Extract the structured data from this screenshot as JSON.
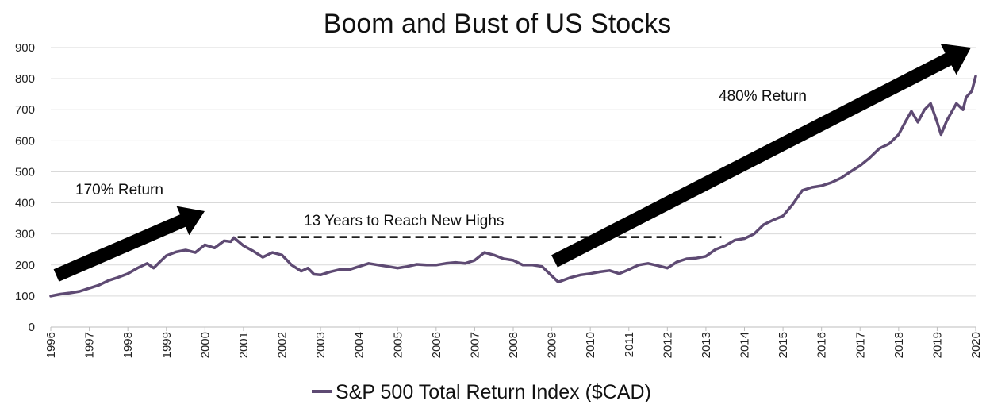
{
  "chart_data": {
    "type": "line",
    "title": "Boom and Bust of US Stocks",
    "xlabel": "",
    "ylabel": "",
    "xlim": [
      1996,
      2020
    ],
    "ylim": [
      0,
      900
    ],
    "yticks": [
      0,
      100,
      200,
      300,
      400,
      500,
      600,
      700,
      800,
      900
    ],
    "xticks": [
      "1996",
      "1997",
      "1998",
      "1999",
      "2000",
      "2001",
      "2002",
      "2003",
      "2004",
      "2005",
      "2006",
      "2007",
      "2008",
      "2009",
      "2010",
      "2011",
      "2012",
      "2013",
      "2014",
      "2015",
      "2016",
      "2017",
      "2018",
      "2019",
      "2020"
    ],
    "grid": "horizontal",
    "legend_position": "bottom",
    "series": [
      {
        "name": "S&P 500 Total Return Index ($CAD)",
        "color": "#5e4a73",
        "x": [
          1996.0,
          1996.25,
          1996.5,
          1996.75,
          1997.0,
          1997.25,
          1997.5,
          1997.75,
          1998.0,
          1998.25,
          1998.5,
          1998.67,
          1998.83,
          1999.0,
          1999.25,
          1999.5,
          1999.75,
          2000.0,
          2000.25,
          2000.5,
          2000.67,
          2000.75,
          2001.0,
          2001.25,
          2001.5,
          2001.75,
          2002.0,
          2002.25,
          2002.5,
          2002.67,
          2002.83,
          2003.0,
          2003.25,
          2003.5,
          2003.75,
          2004.0,
          2004.25,
          2004.5,
          2004.75,
          2005.0,
          2005.25,
          2005.5,
          2005.75,
          2006.0,
          2006.25,
          2006.5,
          2006.75,
          2007.0,
          2007.25,
          2007.5,
          2007.75,
          2008.0,
          2008.25,
          2008.5,
          2008.75,
          2009.0,
          2009.17,
          2009.5,
          2009.75,
          2010.0,
          2010.25,
          2010.5,
          2010.75,
          2011.0,
          2011.25,
          2011.5,
          2011.75,
          2012.0,
          2012.25,
          2012.5,
          2012.75,
          2013.0,
          2013.25,
          2013.5,
          2013.75,
          2014.0,
          2014.25,
          2014.5,
          2014.75,
          2015.0,
          2015.25,
          2015.5,
          2015.75,
          2016.0,
          2016.25,
          2016.5,
          2016.75,
          2017.0,
          2017.25,
          2017.5,
          2017.75,
          2018.0,
          2018.17,
          2018.33,
          2018.5,
          2018.67,
          2018.83,
          2019.0,
          2019.1,
          2019.25,
          2019.5,
          2019.67,
          2019.75,
          2019.9,
          2020.0
        ],
        "values": [
          100,
          106,
          110,
          115,
          125,
          135,
          150,
          160,
          172,
          190,
          205,
          190,
          210,
          230,
          242,
          248,
          240,
          265,
          255,
          278,
          275,
          288,
          262,
          245,
          225,
          240,
          232,
          200,
          180,
          190,
          170,
          168,
          178,
          185,
          185,
          195,
          205,
          200,
          195,
          190,
          195,
          202,
          200,
          200,
          205,
          208,
          205,
          215,
          240,
          232,
          220,
          215,
          200,
          200,
          195,
          165,
          145,
          160,
          168,
          172,
          178,
          182,
          172,
          185,
          200,
          205,
          198,
          190,
          210,
          220,
          222,
          228,
          250,
          262,
          280,
          285,
          300,
          330,
          345,
          358,
          395,
          440,
          450,
          455,
          465,
          480,
          500,
          520,
          545,
          575,
          590,
          620,
          660,
          695,
          660,
          700,
          720,
          660,
          620,
          665,
          720,
          700,
          740,
          760,
          808
        ]
      }
    ],
    "annotations": {
      "left_arrow": "170% Return",
      "middle_line": "13 Years to Reach New Highs",
      "right_arrow": "480% Return"
    },
    "reference_line": {
      "value": 290,
      "x_start": 2000.85,
      "x_end": 2013.4
    }
  }
}
